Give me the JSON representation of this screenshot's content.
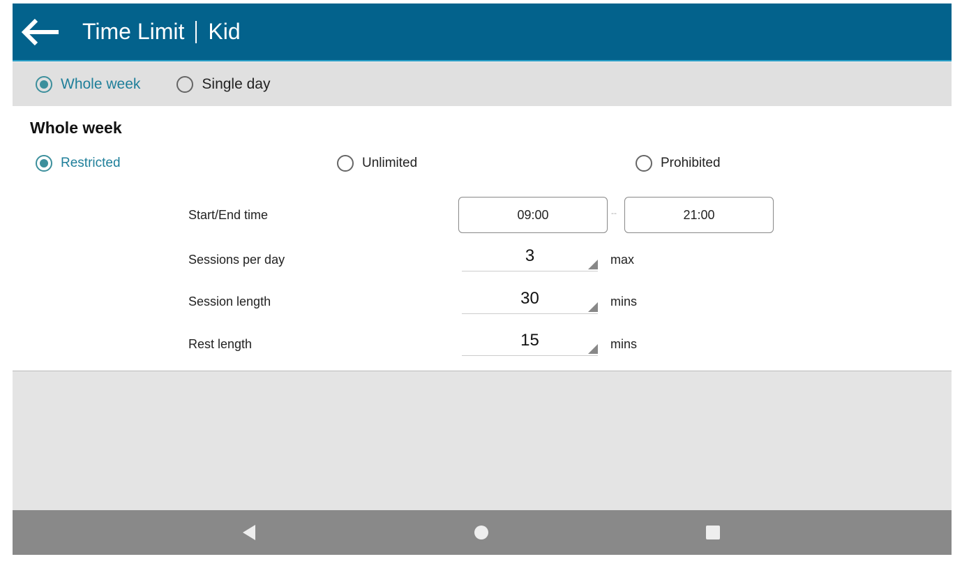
{
  "header": {
    "title": "Time Limit",
    "subtitle": "Kid",
    "back_icon": "arrow-left-icon",
    "color": "#03628c"
  },
  "scope_tabs": [
    {
      "label": "Whole week",
      "selected": true
    },
    {
      "label": "Single day",
      "selected": false
    }
  ],
  "section": {
    "title": "Whole week"
  },
  "modes": [
    {
      "label": "Restricted",
      "selected": true
    },
    {
      "label": "Unlimited",
      "selected": false
    },
    {
      "label": "Prohibited",
      "selected": false
    }
  ],
  "settings": {
    "start_end": {
      "label": "Start/End time",
      "start": "09:00",
      "separator": "--",
      "end": "21:00"
    },
    "sessions": {
      "label": "Sessions per day",
      "value": "3",
      "unit": "max"
    },
    "session_length": {
      "label": "Session length",
      "value": "30",
      "unit": "mins"
    },
    "rest_length": {
      "label": "Rest length",
      "value": "15",
      "unit": "mins"
    }
  },
  "accent": "#3c8f9c",
  "navbar": {
    "back_icon": "triangle-back-icon",
    "home_icon": "circle-home-icon",
    "recents_icon": "square-recents-icon"
  }
}
